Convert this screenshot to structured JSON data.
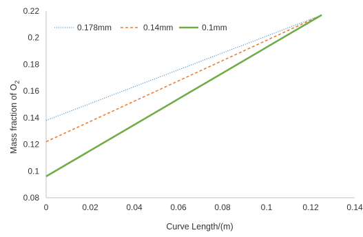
{
  "chart_data": {
    "type": "line",
    "title": "",
    "xlabel": "Curve Length/(m)",
    "ylabel": "Mass fraction of O",
    "ylabel_subscript": "2",
    "xlim": [
      0,
      0.14
    ],
    "ylim": [
      0.08,
      0.22
    ],
    "x_ticks": [
      "0",
      "0.02",
      "0.04",
      "0.06",
      "0.08",
      "0.1",
      "0.12",
      "0.14"
    ],
    "y_ticks": [
      "0.08",
      "0.1",
      "0.12",
      "0.14",
      "0.16",
      "0.18",
      "0.2",
      "0.22"
    ],
    "grid": false,
    "legend_position": "top-left",
    "series": [
      {
        "name": "0.178mm",
        "color": "#5b9bd5",
        "style": "dotted",
        "x": [
          0,
          0.125
        ],
        "y": [
          0.138,
          0.217
        ]
      },
      {
        "name": "0.14mm",
        "color": "#ed7d31",
        "style": "dashed",
        "x": [
          0,
          0.125
        ],
        "y": [
          0.122,
          0.217
        ]
      },
      {
        "name": "0.1mm",
        "color": "#70ad47",
        "style": "solid",
        "x": [
          0,
          0.125
        ],
        "y": [
          0.096,
          0.217
        ]
      }
    ]
  }
}
